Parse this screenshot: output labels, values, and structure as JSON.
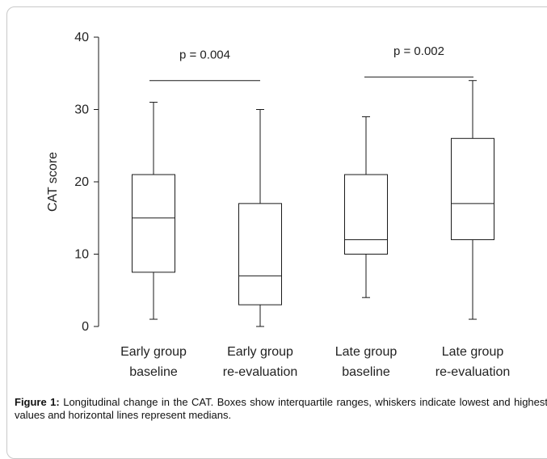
{
  "chart_data": {
    "type": "box",
    "title": "",
    "xlabel": "",
    "ylabel": "CAT score",
    "ylim": [
      0,
      40
    ],
    "yticks": [
      "0",
      "10",
      "20",
      "30",
      "40"
    ],
    "categories": [
      [
        "Early group",
        "baseline"
      ],
      [
        "Early group",
        "re-evaluation"
      ],
      [
        "Late group",
        "baseline"
      ],
      [
        "Late group",
        "re-evaluation"
      ]
    ],
    "boxes": [
      {
        "min": 1,
        "q1": 7.5,
        "median": 15,
        "q3": 21,
        "max": 31
      },
      {
        "min": 0,
        "q1": 3,
        "median": 7,
        "q3": 17,
        "max": 30
      },
      {
        "min": 4,
        "q1": 10,
        "median": 12,
        "q3": 21,
        "max": 29
      },
      {
        "min": 1,
        "q1": 12,
        "median": 17,
        "q3": 26,
        "max": 34
      }
    ],
    "annotations": [
      {
        "text": "p = 0.004",
        "from": 0,
        "to": 1,
        "y": 34
      },
      {
        "text": "p = 0.002",
        "from": 2,
        "to": 3,
        "y": 34.5
      }
    ],
    "grid": false,
    "colors": {
      "stroke": "#1a1a1a",
      "box_fill": "#ffffff"
    }
  },
  "caption": {
    "label": "Figure 1:",
    "text": " Longitudinal change in the CAT. Boxes show interquartile ranges, whiskers indicate lowest and highest values and horizontal lines represent medians."
  }
}
